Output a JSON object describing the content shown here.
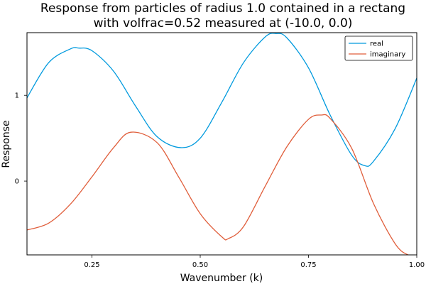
{
  "chart_data": {
    "type": "line",
    "title_lines": [
      "Response from particles of radius 1.0 contained in a rectang",
      "with volfrac=0.52 measured at (-10.0, 0.0)"
    ],
    "xlabel": "Wavenumber (k)",
    "ylabel": "Response",
    "xlim": [
      0.1,
      1.0
    ],
    "ylim": [
      -0.86,
      1.73
    ],
    "xticks": [
      0.25,
      0.5,
      0.75,
      1.0
    ],
    "xtick_labels": [
      "0.25",
      "0.50",
      "0.75",
      "1.00"
    ],
    "yticks": [
      0,
      1
    ],
    "ytick_labels": [
      "0",
      "1"
    ],
    "grid": false,
    "legend_position": "top-right",
    "series": [
      {
        "name": "real",
        "color": "#009ade",
        "x": [
          0.1,
          0.15,
          0.2,
          0.22,
          0.25,
          0.3,
          0.35,
          0.4,
          0.455,
          0.5,
          0.55,
          0.6,
          0.65,
          0.675,
          0.7,
          0.75,
          0.8,
          0.85,
          0.88,
          0.9,
          0.95,
          1.0
        ],
        "y": [
          0.97,
          1.38,
          1.54,
          1.55,
          1.52,
          1.28,
          0.88,
          0.52,
          0.39,
          0.5,
          0.92,
          1.38,
          1.68,
          1.72,
          1.67,
          1.32,
          0.77,
          0.3,
          0.18,
          0.23,
          0.61,
          1.2
        ]
      },
      {
        "name": "imaginary",
        "color": "#e05e3b",
        "x": [
          0.1,
          0.15,
          0.2,
          0.25,
          0.3,
          0.34,
          0.4,
          0.45,
          0.5,
          0.55,
          0.565,
          0.6,
          0.65,
          0.7,
          0.75,
          0.78,
          0.8,
          0.85,
          0.9,
          0.95,
          0.98,
          1.0
        ],
        "y": [
          -0.57,
          -0.49,
          -0.27,
          0.05,
          0.39,
          0.57,
          0.45,
          0.05,
          -0.38,
          -0.65,
          -0.67,
          -0.53,
          -0.06,
          0.4,
          0.72,
          0.77,
          0.73,
          0.38,
          -0.26,
          -0.73,
          -0.86,
          -0.86
        ]
      }
    ]
  }
}
